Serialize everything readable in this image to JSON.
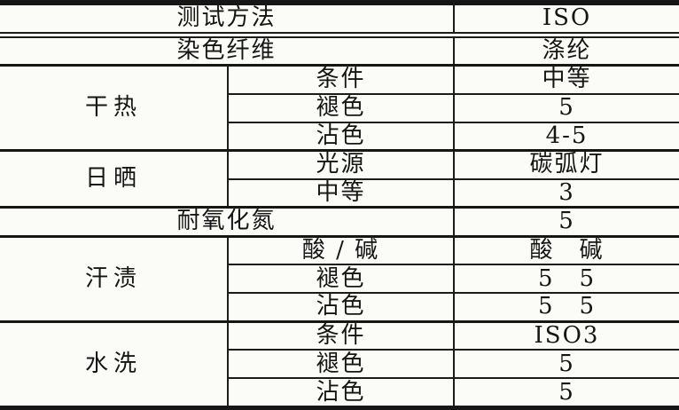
{
  "table": {
    "row_test_method": {
      "label": "测试方法",
      "value": "ISO"
    },
    "row_dyed_fiber": {
      "label": "染色纤维",
      "value": "涤纶"
    },
    "section_dry_heat": {
      "name": "干热",
      "rows": [
        {
          "label": "条件",
          "value": "中等"
        },
        {
          "label": "褪色",
          "value": "5"
        },
        {
          "label": "沾色",
          "value": "4-5"
        }
      ]
    },
    "section_sunlight": {
      "name": "日晒",
      "rows": [
        {
          "label": "光源",
          "value": "碳弧灯"
        },
        {
          "label": "中等",
          "value": "3"
        }
      ]
    },
    "row_nox": {
      "label": "耐氧化氮",
      "value": "5"
    },
    "section_perspiration": {
      "name": "汗渍",
      "rows": [
        {
          "label": "酸 / 碱",
          "value": "酸　碱"
        },
        {
          "label": "褪色",
          "value": "5　5"
        },
        {
          "label": "沾色",
          "value": "5　5"
        }
      ]
    },
    "section_washing": {
      "name": "水洗",
      "rows": [
        {
          "label": "条件",
          "value": "ISO3"
        },
        {
          "label": "褪色",
          "value": "5"
        },
        {
          "label": "沾色",
          "value": "5"
        }
      ]
    }
  }
}
